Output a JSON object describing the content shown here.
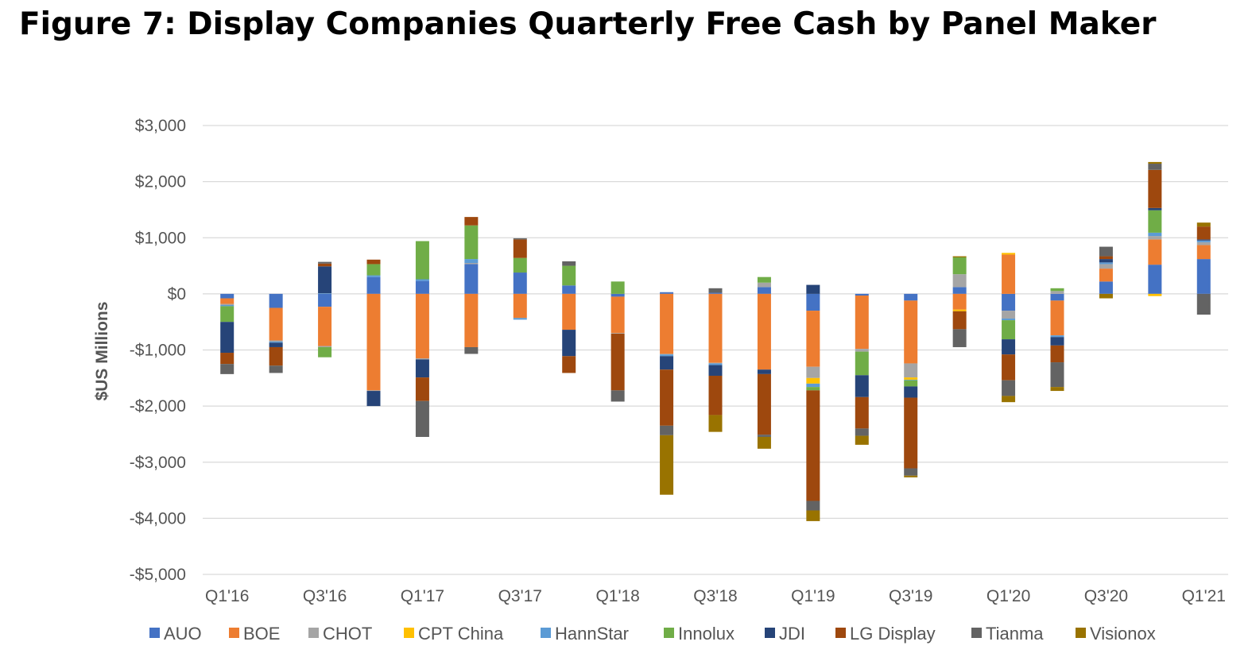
{
  "title": "Figure 7: Display Companies Quarterly Free Cash by Panel Maker",
  "chart_data": {
    "type": "bar",
    "stacked": true,
    "ylabel": "$US Millions",
    "ylim": [
      -5000,
      3000
    ],
    "yticks": [
      3000,
      2000,
      1000,
      0,
      -1000,
      -2000,
      -3000,
      -4000,
      -5000
    ],
    "ytick_labels": [
      "$3,000",
      "$2,000",
      "$1,000",
      "$0",
      "-$1,000",
      "-$2,000",
      "-$3,000",
      "-$4,000",
      "-$5,000"
    ],
    "categories": [
      "Q1'16",
      "Q2'16",
      "Q3'16",
      "Q4'16",
      "Q1'17",
      "Q2'17",
      "Q3'17",
      "Q4'17",
      "Q1'18",
      "Q2'18",
      "Q3'18",
      "Q4'18",
      "Q1'19",
      "Q2'19",
      "Q3'19",
      "Q4'19",
      "Q1'20",
      "Q2'20",
      "Q3'20",
      "Q4'20",
      "Q1'21"
    ],
    "xtick_labels": [
      "Q1'16",
      "",
      "Q3'16",
      "",
      "Q1'17",
      "",
      "Q3'17",
      "",
      "Q1'18",
      "",
      "Q3'18",
      "",
      "Q1'19",
      "",
      "Q3'19",
      "",
      "Q1'20",
      "",
      "Q3'20",
      "",
      "Q1'21"
    ],
    "grid": true,
    "legend_position": "bottom",
    "series": [
      {
        "name": "AUO",
        "color": "#4472C4",
        "values": [
          -80,
          -250,
          -230,
          300,
          230,
          530,
          380,
          150,
          -50,
          30,
          20,
          120,
          -300,
          -30,
          -120,
          120,
          -300,
          -120,
          220,
          520,
          620
        ]
      },
      {
        "name": "BOE",
        "color": "#ED7D31",
        "values": [
          -100,
          -580,
          -700,
          -1720,
          -1150,
          -950,
          -430,
          -640,
          -650,
          -1070,
          -1230,
          -1350,
          -1000,
          -950,
          -1120,
          -280,
          700,
          -620,
          230,
          450,
          250
        ]
      },
      {
        "name": "CHOT",
        "color": "#A5A5A5",
        "values": [
          -20,
          -20,
          -20,
          -10,
          -20,
          20,
          0,
          0,
          -10,
          -10,
          -10,
          80,
          -200,
          -50,
          -250,
          230,
          -140,
          50,
          80,
          60,
          50
        ]
      },
      {
        "name": "CPT China",
        "color": "#FFC000",
        "values": [
          0,
          0,
          0,
          0,
          0,
          0,
          0,
          0,
          0,
          0,
          0,
          0,
          -100,
          0,
          -40,
          -30,
          30,
          0,
          0,
          -40,
          0
        ]
      },
      {
        "name": "HannStar",
        "color": "#5B9BD5",
        "values": [
          -20,
          -20,
          10,
          30,
          30,
          70,
          -30,
          0,
          0,
          -30,
          -30,
          0,
          -60,
          0,
          -10,
          0,
          -30,
          -30,
          30,
          60,
          30
        ]
      },
      {
        "name": "Innolux",
        "color": "#70AD47",
        "values": [
          -280,
          0,
          -180,
          200,
          680,
          600,
          260,
          350,
          220,
          0,
          0,
          100,
          -60,
          -420,
          -110,
          300,
          -340,
          50,
          0,
          400,
          0
        ]
      },
      {
        "name": "JDI",
        "color": "#264478",
        "values": [
          -550,
          -80,
          480,
          -270,
          -320,
          0,
          0,
          -470,
          0,
          -240,
          -190,
          -80,
          160,
          -390,
          -200,
          0,
          -270,
          -150,
          60,
          40,
          20
        ]
      },
      {
        "name": "LG Display",
        "color": "#9E480E",
        "values": [
          -200,
          -330,
          50,
          80,
          -420,
          150,
          330,
          -300,
          -1010,
          -1000,
          -700,
          -1080,
          -1970,
          -560,
          -1260,
          -320,
          -460,
          -300,
          50,
          680,
          230
        ]
      },
      {
        "name": "Tianma",
        "color": "#636363",
        "values": [
          -180,
          -130,
          30,
          0,
          -640,
          -120,
          20,
          80,
          -200,
          -170,
          80,
          -40,
          -170,
          -130,
          -130,
          -320,
          -280,
          -440,
          170,
          110,
          -370
        ]
      },
      {
        "name": "Visionox",
        "color": "#997300",
        "values": [
          0,
          0,
          0,
          0,
          0,
          0,
          0,
          0,
          0,
          -1060,
          -300,
          -210,
          -190,
          -160,
          -30,
          20,
          -110,
          -70,
          -80,
          30,
          70
        ]
      }
    ]
  }
}
